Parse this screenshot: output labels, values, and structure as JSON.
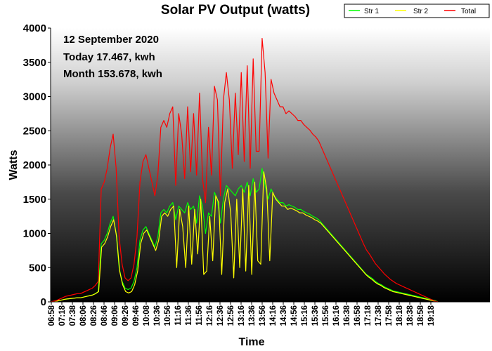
{
  "chart_data": {
    "type": "line",
    "title": "Solar PV Output (watts)",
    "xlabel": "Time",
    "ylabel": "Watts",
    "ylim": [
      0,
      4000
    ],
    "yticks": [
      "0",
      "500",
      "1000",
      "1500",
      "2000",
      "2500",
      "3000",
      "3500",
      "4000"
    ],
    "xtick_labels": [
      "06:58",
      "07:18",
      "07:38",
      "08:06",
      "08:26",
      "08:46",
      "09:06",
      "09:26",
      "09:46",
      "10:08",
      "10:36",
      "10:56",
      "11:16",
      "11:36",
      "11:56",
      "12:16",
      "12:36",
      "12:56",
      "13:16",
      "13:36",
      "13:56",
      "14:16",
      "14:36",
      "14:56",
      "15:16",
      "15:36",
      "15:56",
      "16:16",
      "16:38",
      "16:58",
      "17:18",
      "17:38",
      "17:58",
      "18:18",
      "18:38",
      "18:58",
      "19:18"
    ],
    "annotations": [
      "12 September 2020",
      "Today 17.467, kwh",
      "Month 153.678, kwh"
    ],
    "legend_position": "top-right",
    "series": [
      {
        "name": "Str 1",
        "color": "#00ff00",
        "values": [
          0,
          5,
          10,
          20,
          30,
          40,
          45,
          50,
          55,
          60,
          60,
          70,
          80,
          90,
          100,
          120,
          150,
          850,
          900,
          1000,
          1150,
          1250,
          1000,
          500,
          300,
          200,
          180,
          200,
          300,
          500,
          900,
          1050,
          1100,
          1000,
          900,
          800,
          950,
          1300,
          1350,
          1300,
          1400,
          1450,
          1200,
          1400,
          1350,
          1300,
          1450,
          1350,
          1400,
          1150,
          1550,
          1400,
          1000,
          1300,
          1250,
          1600,
          1500,
          1150,
          1500,
          1700,
          1650,
          1600,
          1550,
          1650,
          1700,
          1600,
          1750,
          1550,
          1800,
          1600,
          1650,
          1950,
          1700,
          1500,
          1650,
          1550,
          1500,
          1450,
          1450,
          1400,
          1420,
          1400,
          1380,
          1350,
          1350,
          1320,
          1300,
          1280,
          1250,
          1230,
          1200,
          1150,
          1100,
          1050,
          1000,
          950,
          900,
          850,
          800,
          750,
          700,
          650,
          600,
          550,
          500,
          450,
          400,
          370,
          340,
          300,
          270,
          250,
          220,
          200,
          180,
          160,
          150,
          140,
          130,
          120,
          110,
          100,
          90,
          80,
          70,
          60,
          50,
          40,
          30,
          20,
          0
        ]
      },
      {
        "name": "Str 2",
        "color": "#ffff00",
        "values": [
          0,
          5,
          10,
          20,
          30,
          40,
          45,
          50,
          55,
          60,
          60,
          70,
          80,
          90,
          100,
          120,
          150,
          800,
          850,
          950,
          1100,
          1200,
          950,
          450,
          250,
          150,
          130,
          150,
          250,
          450,
          850,
          1000,
          1050,
          950,
          850,
          750,
          900,
          1250,
          1300,
          1250,
          1350,
          1400,
          500,
          1350,
          1100,
          500,
          1400,
          550,
          1350,
          700,
          1500,
          400,
          450,
          1250,
          600,
          1550,
          1450,
          400,
          1450,
          1650,
          1300,
          350,
          1500,
          500,
          1650,
          450,
          1700,
          400,
          1750,
          600,
          550,
          1900,
          1650,
          600,
          1600,
          1500,
          1450,
          1400,
          1400,
          1350,
          1370,
          1350,
          1330,
          1300,
          1300,
          1270,
          1250,
          1230,
          1200,
          1180,
          1150,
          1100,
          1050,
          1000,
          950,
          900,
          850,
          800,
          750,
          700,
          650,
          600,
          550,
          500,
          450,
          400,
          360,
          330,
          290,
          260,
          240,
          210,
          190,
          170,
          150,
          140,
          130,
          120,
          110,
          100,
          90,
          80,
          70,
          60,
          50,
          40,
          30,
          20,
          10,
          0
        ]
      },
      {
        "name": "Total",
        "color": "#ff0000",
        "values": [
          0,
          10,
          20,
          40,
          60,
          80,
          90,
          100,
          110,
          120,
          120,
          140,
          160,
          180,
          200,
          240,
          300,
          1650,
          1750,
          1950,
          2250,
          2450,
          1950,
          950,
          550,
          350,
          310,
          350,
          550,
          950,
          1750,
          2050,
          2150,
          1950,
          1750,
          1550,
          1850,
          2550,
          2650,
          2550,
          2750,
          2850,
          1700,
          2750,
          2450,
          1800,
          2850,
          1900,
          2750,
          1850,
          3050,
          1800,
          1450,
          2550,
          1850,
          3150,
          2950,
          1550,
          2950,
          3350,
          2950,
          1950,
          3050,
          2150,
          3350,
          2050,
          3450,
          1950,
          3550,
          2200,
          2200,
          3850,
          3350,
          2100,
          3250,
          3050,
          2950,
          2850,
          2850,
          2750,
          2790,
          2750,
          2710,
          2650,
          2650,
          2590,
          2550,
          2510,
          2450,
          2410,
          2350,
          2250,
          2150,
          2050,
          1950,
          1850,
          1750,
          1650,
          1550,
          1450,
          1350,
          1250,
          1150,
          1050,
          950,
          850,
          760,
          700,
          630,
          560,
          510,
          460,
          410,
          370,
          330,
          300,
          270,
          250,
          230,
          210,
          190,
          170,
          150,
          130,
          110,
          90,
          70,
          50,
          30,
          10,
          0
        ]
      }
    ]
  }
}
